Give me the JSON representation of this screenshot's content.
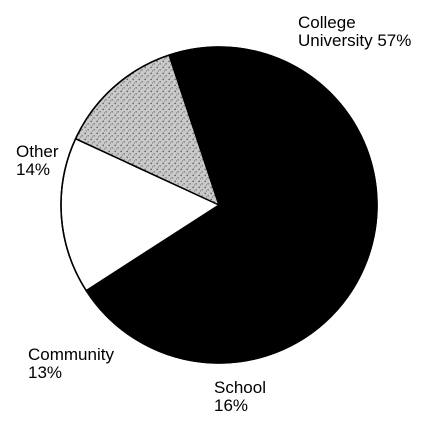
{
  "chart_data": {
    "type": "pie",
    "title": "",
    "slices": [
      {
        "label_lines": [
          "College",
          "University 57%"
        ],
        "value": 57,
        "fill": "solid-black"
      },
      {
        "label_lines": [
          "School",
          "16%"
        ],
        "value": 16,
        "fill": "white"
      },
      {
        "label_lines": [
          "Community",
          "13%"
        ],
        "value": 13,
        "fill": "stipple-gray"
      },
      {
        "label_lines": [
          "Other",
          "14%"
        ],
        "value": 14,
        "fill": "solid-black"
      }
    ],
    "colors": {
      "black": "#000000",
      "white": "#ffffff",
      "stipple_base": "#c9c9c9",
      "stipple_dots": "#6a6a6a"
    }
  }
}
